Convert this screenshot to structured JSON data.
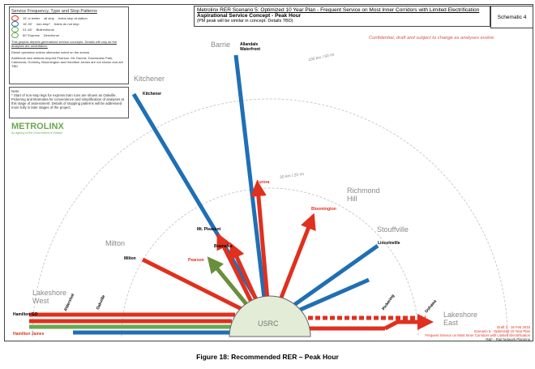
{
  "header": {
    "title": "Metrolinx RER Scenario 5: Optimized 10 Year Plan - Frequent Service on Most Inner Corridors with Limited Electrification",
    "subtitle": "Aspirational Service Concept - Peak Hour",
    "note": "(PM peak will be similar in concept. Details TBD)",
    "schematic": "Schematic 4"
  },
  "confidential": "Confidential, draft and subject to change as analyses evolve",
  "legend": {
    "title": "Service Frequency, Type and Stop Patterns",
    "rows": [
      {
        "freq": "15' or better",
        "freq_color": "#e0301e",
        "type": "all stop",
        "stop": "trains stop at station"
      },
      {
        "freq": "16'-30'",
        "freq_color": "#1f6fb5",
        "type": "non-stop*",
        "stop": "trains do not stop"
      },
      {
        "freq": "31'-60'",
        "freq_color": "#6aa84f",
        "type": "Bidirectional",
        "stop": ""
      },
      {
        "freq": "60' Express",
        "freq_color": "#6aa84f",
        "type": "Directional",
        "stop": ""
      }
    ],
    "disclaimer": "This graphic depicts generalized service concepts. Details will vary as the analyses are undertaken.",
    "bullets": [
      "Diesel operation unless otherwise noted on the arrows",
      "Additional new stations beyond Pearson, Mt. Dennis, Downsview Park, Caledonia, Gormley, Bloomington and Hamilton James are not shown and are TBD"
    ]
  },
  "note": {
    "title": "Note:",
    "text": "* Start of non-stop legs for express train runs are shown as Oakville, Pickering and Bramalea for convenience and simplification of analyses at this stage of assessment. Details of stopping patterns will be addressed more fully in later stages of the project."
  },
  "logo": {
    "name": "METROLINX",
    "tag": "An agency of the Government of Ontario"
  },
  "rings": [
    "100 km / 60 mi",
    "30 km / 20 mi"
  ],
  "hub": "USRC",
  "corridors": [
    "Barrie",
    "Kitchener",
    "Milton",
    "Lakeshore West",
    "Richmond Hill",
    "Stouffville",
    "Lakeshore East"
  ],
  "terminals": {
    "allandale": "Allandale Waterfront",
    "kitchener": "Kitchener",
    "aurora": "Aurora",
    "mtpleasant": "Mt. Pleasant",
    "bramalea": "Bramalea",
    "pearson": "Pearson",
    "milton": "Milton",
    "aldershot": "Aldershot",
    "oakville": "Oakville",
    "hamiltongo": "Hamilton GO",
    "hamiltonjames": "Hamilton James",
    "bloomington": "Bloomington",
    "lincolnville": "Lincolnville",
    "pickering": "Pickering",
    "oshawa": "Oshawa"
  },
  "colors": {
    "frequent": "#e0301e",
    "medium": "#1f6fb5",
    "low": "#6aa84f",
    "express": "#6a8f3a"
  },
  "draft": [
    "Draft 3 - 19 Feb 2015",
    "Scenario 5 - Optimized 10 Year Plan",
    "Frequent Service on Most Inner Corridors with Limited Electrification",
    "R&F - Rail Network Planning"
  ],
  "caption": "Figure 18: Recommended RER – Peak Hour"
}
